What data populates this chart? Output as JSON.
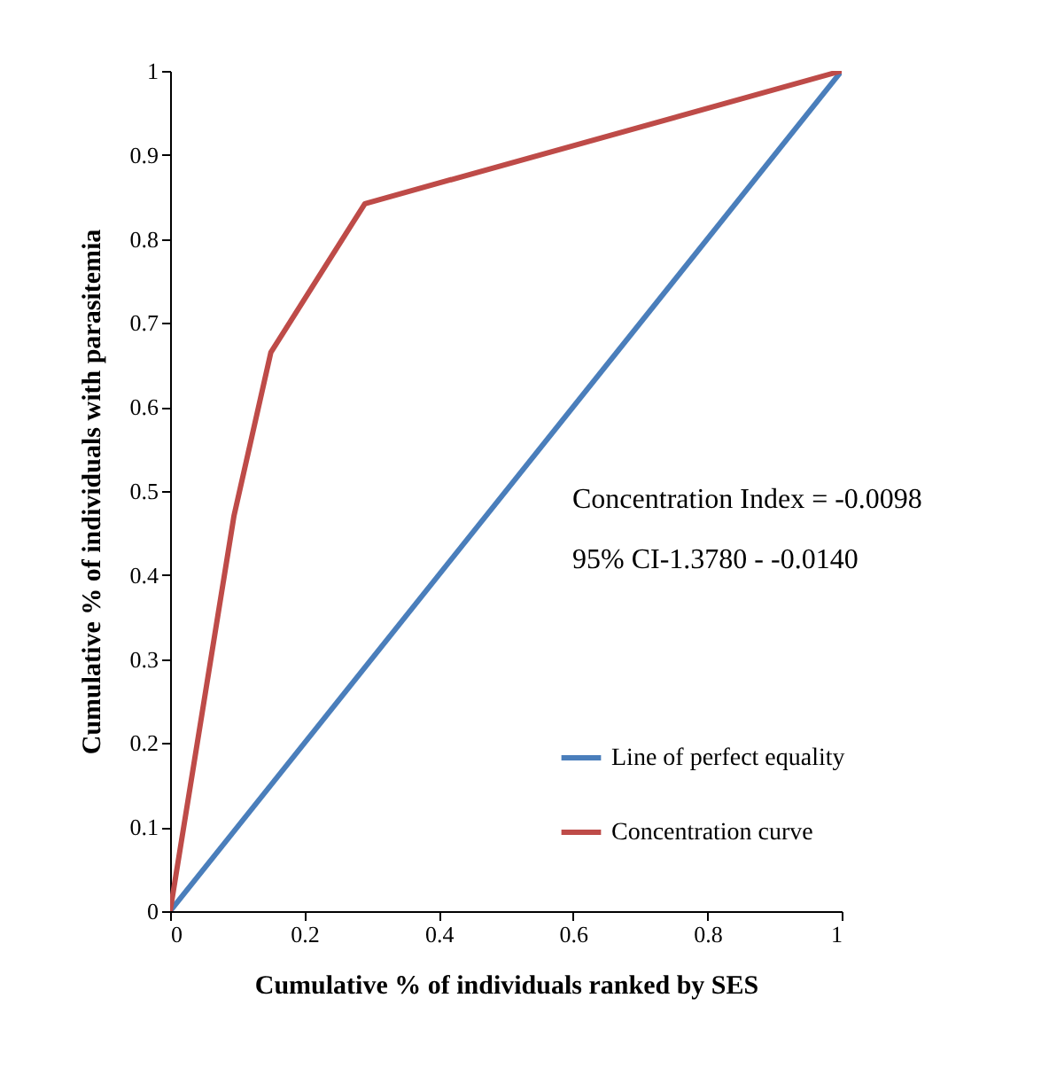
{
  "chart_data": {
    "type": "line",
    "xlabel": "Cumulative % of individuals ranked by SES",
    "ylabel": "Cumulative % of individuals with parasitemia",
    "series": [
      {
        "name": "Line of perfect equality",
        "color": "#4a7ebb",
        "x": [
          0,
          1
        ],
        "values": [
          0,
          1
        ]
      },
      {
        "name": "Concentration curve",
        "color": "#be4b48",
        "x": [
          0,
          0.095,
          0.15,
          0.29,
          1
        ],
        "values": [
          0,
          0.47,
          0.665,
          0.842,
          1
        ]
      }
    ],
    "xlim": [
      0,
      1
    ],
    "ylim": [
      0,
      1
    ],
    "xticks": [
      0,
      0.2,
      0.4,
      0.6,
      0.8,
      1
    ],
    "yticks": [
      0,
      0.1,
      0.2,
      0.3,
      0.4,
      0.5,
      0.6,
      0.7,
      0.8,
      0.9,
      1
    ],
    "grid": false,
    "legend": "right",
    "marker": "none",
    "line_style": "solid",
    "annotations": [
      "Concentration Index = -0.0098",
      "95% CI-1.3780 - -0.0140"
    ]
  }
}
